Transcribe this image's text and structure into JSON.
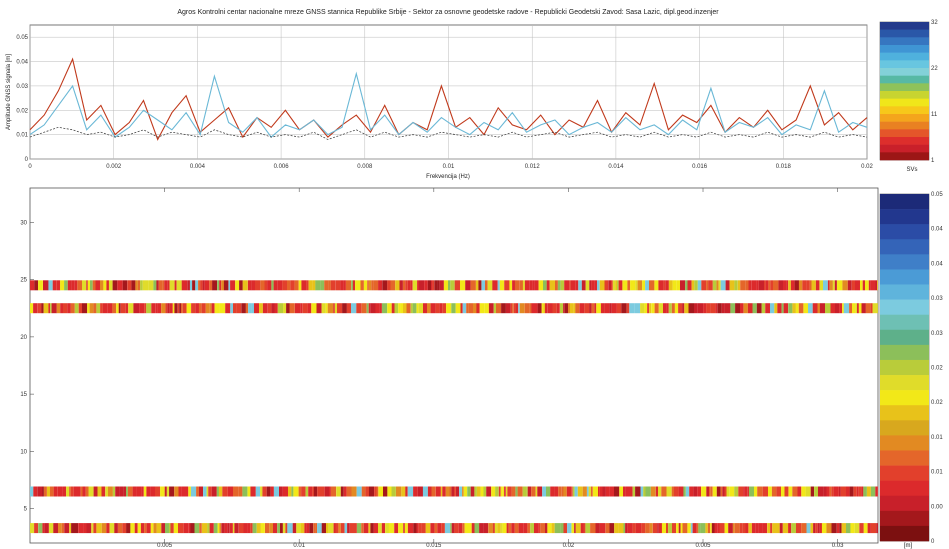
{
  "chart_data": [
    {
      "type": "line",
      "title": "Agros Kontrolni centar nacionalne mreze GNSS stannica Republike Srbije - Sektor za osnovne geodetske radove - Republicki Geodetski Zavod: Sasa Lazic, dipl.geod.inzenjer",
      "xlabel": "Frekvencija (Hz)",
      "ylabel": "Amplitude GNSS signala [m]",
      "xlim": [
        0,
        0.02
      ],
      "ylim": [
        0,
        0.055
      ],
      "x_ticks": [
        "0",
        "0.002",
        "0.004",
        "0.006",
        "0.008",
        "0.01",
        "0.012",
        "0.014",
        "0.016",
        "0.018",
        "0.02"
      ],
      "y_ticks": [
        "0",
        "0.01",
        "0.02",
        "0.03",
        "0.04",
        "0.05"
      ],
      "grid": true,
      "series": [
        {
          "color": "#c0391b",
          "values": [
            0.012,
            0.018,
            0.028,
            0.041,
            0.016,
            0.022,
            0.01,
            0.015,
            0.024,
            0.008,
            0.019,
            0.026,
            0.011,
            0.016,
            0.021,
            0.009,
            0.017,
            0.013,
            0.02,
            0.012,
            0.016,
            0.009,
            0.014,
            0.018,
            0.011,
            0.022,
            0.01,
            0.015,
            0.012,
            0.03,
            0.013,
            0.017,
            0.01,
            0.021,
            0.014,
            0.012,
            0.018,
            0.01,
            0.016,
            0.013,
            0.024,
            0.011,
            0.019,
            0.014,
            0.031,
            0.012,
            0.018,
            0.015,
            0.022,
            0.011,
            0.017,
            0.013,
            0.02,
            0.012,
            0.016,
            0.03,
            0.014,
            0.019,
            0.012,
            0.017
          ]
        },
        {
          "color": "#6ab8d6",
          "values": [
            0.01,
            0.014,
            0.022,
            0.03,
            0.012,
            0.018,
            0.009,
            0.013,
            0.02,
            0.016,
            0.012,
            0.019,
            0.01,
            0.034,
            0.015,
            0.011,
            0.017,
            0.009,
            0.014,
            0.012,
            0.016,
            0.01,
            0.013,
            0.035,
            0.012,
            0.018,
            0.01,
            0.015,
            0.011,
            0.017,
            0.013,
            0.01,
            0.015,
            0.012,
            0.019,
            0.011,
            0.014,
            0.016,
            0.01,
            0.013,
            0.015,
            0.011,
            0.017,
            0.012,
            0.014,
            0.01,
            0.016,
            0.012,
            0.029,
            0.011,
            0.015,
            0.013,
            0.017,
            0.01,
            0.014,
            0.012,
            0.028,
            0.011,
            0.015,
            0.013
          ]
        },
        {
          "color": "#333333",
          "values": [
            0.009,
            0.011,
            0.013,
            0.012,
            0.01,
            0.011,
            0.009,
            0.01,
            0.012,
            0.009,
            0.011,
            0.01,
            0.009,
            0.012,
            0.01,
            0.009,
            0.011,
            0.009,
            0.01,
            0.009,
            0.011,
            0.008,
            0.01,
            0.012,
            0.009,
            0.011,
            0.009,
            0.01,
            0.009,
            0.011,
            0.01,
            0.009,
            0.01,
            0.009,
            0.011,
            0.009,
            0.01,
            0.011,
            0.009,
            0.01,
            0.011,
            0.009,
            0.01,
            0.009,
            0.011,
            0.009,
            0.01,
            0.009,
            0.011,
            0.009,
            0.01,
            0.009,
            0.011,
            0.009,
            0.01,
            0.009,
            0.011,
            0.009,
            0.01,
            0.009
          ]
        }
      ]
    },
    {
      "type": "heatmap",
      "xlim": [
        0,
        0.035
      ],
      "ylim": [
        2,
        33
      ],
      "x_ticks": [
        "0.005",
        "0.01",
        "0.015",
        "0.02",
        "0.005",
        "0.03"
      ],
      "y_ticks": [
        "5",
        "10",
        "15",
        "20",
        "25",
        "30"
      ],
      "rows": [
        3.3,
        6.5,
        22.5,
        24.5
      ]
    }
  ],
  "colorbars": {
    "top": {
      "label": "SVs",
      "ticks": [
        "32",
        "22",
        "11",
        "1"
      ],
      "colors": [
        "#233a8c",
        "#2a57a8",
        "#3676c0",
        "#3f95d4",
        "#4fb1dd",
        "#68c6e0",
        "#83d1d8",
        "#57b9a4",
        "#8ec25a",
        "#c8d430",
        "#f0e61a",
        "#f7c81a",
        "#f4a51c",
        "#e98122",
        "#e4562a",
        "#dd2e2c",
        "#c9202a",
        "#9c1616"
      ]
    },
    "bottom": {
      "label": "[m]",
      "ticks": [
        "0.05",
        "0.04",
        "0.04",
        "0.03",
        "0.03",
        "0.02",
        "0.02",
        "0.01",
        "0.01",
        "0.00",
        "0"
      ],
      "colors": [
        "#1c2a78",
        "#22378e",
        "#2b4ca6",
        "#3464b8",
        "#3f7fc8",
        "#4b9bd6",
        "#5fb4dc",
        "#7ccbdf",
        "#6ec0b4",
        "#5eb08a",
        "#8cbf5a",
        "#b9cc3a",
        "#e0dc2a",
        "#f2e818",
        "#e8c21a",
        "#d8a81e",
        "#e28a22",
        "#e4662a",
        "#e2402c",
        "#dc2a2c",
        "#c8202a",
        "#a4181c",
        "#7c1010"
      ]
    }
  }
}
